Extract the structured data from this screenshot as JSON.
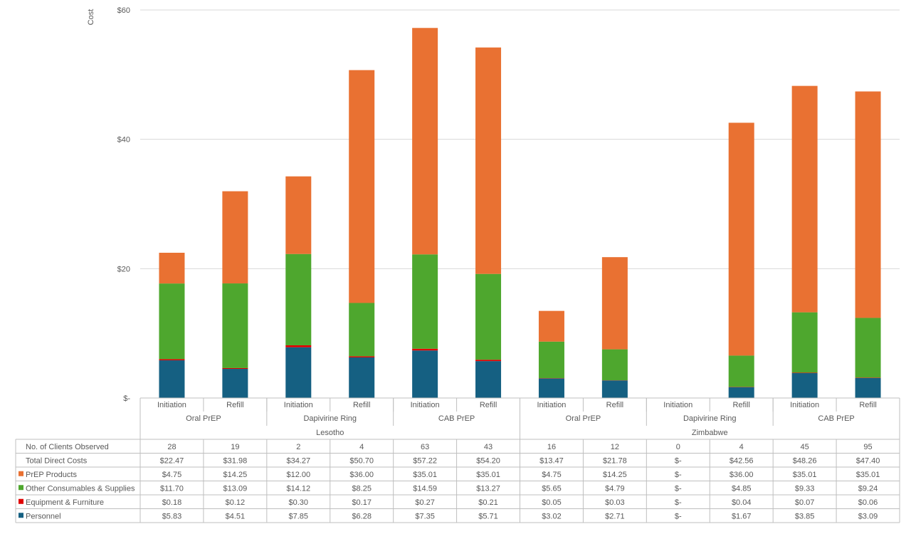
{
  "chart_data": {
    "type": "bar",
    "stacked": true,
    "ylabel": "Cost",
    "ylim": [
      0,
      60
    ],
    "yticks": [
      {
        "value": 0,
        "label": "$-"
      },
      {
        "value": 20,
        "label": "$20"
      },
      {
        "value": 40,
        "label": "$40"
      },
      {
        "value": 60,
        "label": "$60"
      }
    ],
    "grid": true,
    "categories": [
      "Initiation",
      "Refill",
      "Initiation",
      "Refill",
      "Initiation",
      "Refill",
      "Initiation",
      "Refill",
      "Initiation",
      "Refill",
      "Initiation",
      "Refill"
    ],
    "groups": [
      {
        "label": "Oral PrEP",
        "start": 0,
        "count": 2
      },
      {
        "label": "Dapivirine Ring",
        "start": 2,
        "count": 2
      },
      {
        "label": "CAB PrEP",
        "start": 4,
        "count": 2
      },
      {
        "label": "Oral PrEP",
        "start": 6,
        "count": 2
      },
      {
        "label": "Dapivirine Ring",
        "start": 8,
        "count": 2
      },
      {
        "label": "CAB PrEP",
        "start": 10,
        "count": 2
      }
    ],
    "countries": [
      {
        "label": "Lesotho",
        "start": 0,
        "count": 6
      },
      {
        "label": "Zimbabwe",
        "start": 6,
        "count": 6
      }
    ],
    "series": [
      {
        "name": "Personnel",
        "color": "#156082",
        "values": [
          5.83,
          4.51,
          7.85,
          6.28,
          7.35,
          5.71,
          3.02,
          2.71,
          0,
          1.67,
          3.85,
          3.09
        ]
      },
      {
        "name": "Equipment & Furniture",
        "color": "#e00000",
        "values": [
          0.18,
          0.12,
          0.3,
          0.17,
          0.27,
          0.21,
          0.05,
          0.03,
          0,
          0.04,
          0.07,
          0.06
        ]
      },
      {
        "name": "Other Consumables & Supplies",
        "color": "#4ea72e",
        "values": [
          11.7,
          13.09,
          14.12,
          8.25,
          14.59,
          13.27,
          5.65,
          4.79,
          0,
          4.85,
          9.33,
          9.24
        ]
      },
      {
        "name": "PrEP Products",
        "color": "#e97132",
        "values": [
          4.75,
          14.25,
          12.0,
          36.0,
          35.01,
          35.01,
          4.75,
          14.25,
          0,
          36.0,
          35.01,
          35.01
        ]
      }
    ],
    "table": {
      "rows": [
        {
          "label": "No. of Clients Observed",
          "swatch": "",
          "cells": [
            "28",
            "19",
            "2",
            "4",
            "63",
            "43",
            "16",
            "12",
            "0",
            "4",
            "45",
            "95"
          ]
        },
        {
          "label": "Total Direct Costs",
          "swatch": "",
          "cells": [
            "$22.47",
            "$31.98",
            "$34.27",
            "$50.70",
            "$57.22",
            "$54.20",
            "$13.47",
            "$21.78",
            "$-",
            "$42.56",
            "$48.26",
            "$47.40"
          ]
        },
        {
          "label": "PrEP Products",
          "swatch": "#e97132",
          "cells": [
            "$4.75",
            "$14.25",
            "$12.00",
            "$36.00",
            "$35.01",
            "$35.01",
            "$4.75",
            "$14.25",
            "$-",
            "$36.00",
            "$35.01",
            "$35.01"
          ]
        },
        {
          "label": "Other Consumables & Supplies",
          "swatch": "#4ea72e",
          "cells": [
            "$11.70",
            "$13.09",
            "$14.12",
            "$8.25",
            "$14.59",
            "$13.27",
            "$5.65",
            "$4.79",
            "$-",
            "$4.85",
            "$9.33",
            "$9.24"
          ]
        },
        {
          "label": "Equipment & Furniture",
          "swatch": "#e00000",
          "cells": [
            "$0.18",
            "$0.12",
            "$0.30",
            "$0.17",
            "$0.27",
            "$0.21",
            "$0.05",
            "$0.03",
            "$-",
            "$0.04",
            "$0.07",
            "$0.06"
          ]
        },
        {
          "label": "Personnel",
          "swatch": "#156082",
          "cells": [
            "$5.83",
            "$4.51",
            "$7.85",
            "$6.28",
            "$7.35",
            "$5.71",
            "$3.02",
            "$2.71",
            "$-",
            "$1.67",
            "$3.85",
            "$3.09"
          ]
        }
      ]
    }
  }
}
